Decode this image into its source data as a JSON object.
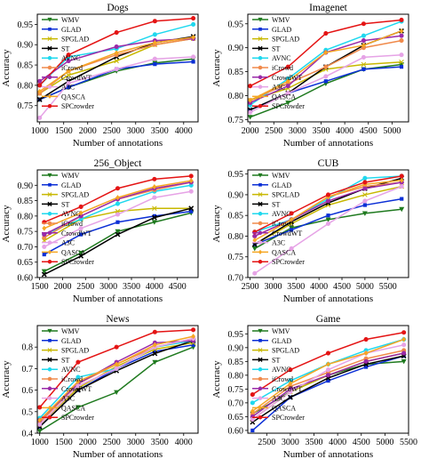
{
  "chart_data": [
    {
      "type": "line",
      "title": "Dogs",
      "xlabel": "Number of annotations",
      "ylabel": "Accuracy",
      "xlim": [
        950,
        4300
      ],
      "ylim": [
        0.71,
        0.975
      ],
      "xticks": [
        1000,
        1500,
        2000,
        2500,
        3000,
        3500,
        4000
      ],
      "yticks": [
        0.75,
        0.8,
        0.85,
        0.9,
        0.95
      ],
      "legend_position": "top-left",
      "x": [
        1000,
        1600,
        2600,
        3400,
        4200
      ],
      "series": [
        {
          "name": "WMV",
          "values": [
            0.765,
            0.795,
            0.835,
            0.855,
            0.865
          ]
        },
        {
          "name": "GLAD",
          "values": [
            0.765,
            0.795,
            0.84,
            0.852,
            0.858
          ]
        },
        {
          "name": "SPGLAD",
          "values": [
            0.78,
            0.825,
            0.86,
            0.9,
            0.915
          ]
        },
        {
          "name": "ST",
          "values": [
            0.765,
            0.81,
            0.87,
            0.905,
            0.92
          ]
        },
        {
          "name": "AVNC",
          "values": [
            0.8,
            0.87,
            0.89,
            0.925,
            0.95
          ]
        },
        {
          "name": "iCrowd",
          "values": [
            0.78,
            0.835,
            0.875,
            0.9,
            0.915
          ]
        },
        {
          "name": "CrowdWT",
          "values": [
            0.81,
            0.86,
            0.895,
            0.91,
            0.915
          ]
        },
        {
          "name": "A3C",
          "values": [
            0.72,
            0.805,
            0.84,
            0.865,
            0.87
          ]
        },
        {
          "name": "QASCA",
          "values": [
            0.785,
            0.835,
            0.88,
            0.905,
            0.918
          ]
        },
        {
          "name": "SPCrowder",
          "values": [
            0.8,
            0.875,
            0.93,
            0.958,
            0.965
          ]
        }
      ]
    },
    {
      "type": "line",
      "title": "Imagenet",
      "xlabel": "Number of annotations",
      "ylabel": "Accuracy",
      "xlim": [
        1950,
        5350
      ],
      "ylim": [
        0.745,
        0.97
      ],
      "xticks": [
        2000,
        2500,
        3000,
        3500,
        4000,
        4500,
        5000
      ],
      "yticks": [
        0.75,
        0.8,
        0.85,
        0.9,
        0.95
      ],
      "legend_position": "top-left",
      "x": [
        2000,
        2800,
        3600,
        4400,
        5200
      ],
      "series": [
        {
          "name": "WMV",
          "values": [
            0.755,
            0.785,
            0.825,
            0.855,
            0.865
          ]
        },
        {
          "name": "GLAD",
          "values": [
            0.77,
            0.805,
            0.83,
            0.855,
            0.86
          ]
        },
        {
          "name": "SPGLAD",
          "values": [
            0.79,
            0.815,
            0.855,
            0.865,
            0.87
          ]
        },
        {
          "name": "ST",
          "values": [
            0.77,
            0.805,
            0.86,
            0.905,
            0.935
          ]
        },
        {
          "name": "AVNC",
          "values": [
            0.78,
            0.835,
            0.895,
            0.925,
            0.955
          ]
        },
        {
          "name": "iCrowd",
          "values": [
            0.79,
            0.825,
            0.86,
            0.9,
            0.915
          ]
        },
        {
          "name": "CrowdWT",
          "values": [
            0.785,
            0.82,
            0.89,
            0.915,
            0.925
          ]
        },
        {
          "name": "A3C",
          "values": [
            0.765,
            0.805,
            0.84,
            0.88,
            0.885
          ]
        },
        {
          "name": "QASCA",
          "values": [
            0.79,
            0.83,
            0.89,
            0.905,
            0.935
          ]
        },
        {
          "name": "SPCrowder",
          "values": [
            0.82,
            0.86,
            0.93,
            0.95,
            0.958
          ]
        }
      ]
    },
    {
      "type": "line",
      "title": "256_Object",
      "xlabel": "Number of annotations",
      "ylabel": "Accuracy",
      "xlim": [
        1450,
        4950
      ],
      "ylim": [
        0.6,
        0.95
      ],
      "xticks": [
        1500,
        2000,
        2500,
        3000,
        3500,
        4000,
        4500
      ],
      "yticks": [
        0.6,
        0.65,
        0.7,
        0.75,
        0.8,
        0.85,
        0.9
      ],
      "legend_position": "top-left",
      "x": [
        1600,
        2400,
        3200,
        4000,
        4800
      ],
      "series": [
        {
          "name": "WMV",
          "values": [
            0.62,
            0.68,
            0.75,
            0.78,
            0.81
          ]
        },
        {
          "name": "GLAD",
          "values": [
            0.675,
            0.74,
            0.78,
            0.8,
            0.815
          ]
        },
        {
          "name": "SPGLAD",
          "values": [
            0.72,
            0.79,
            0.815,
            0.825,
            0.825
          ]
        },
        {
          "name": "ST",
          "values": [
            0.61,
            0.67,
            0.74,
            0.795,
            0.825
          ]
        },
        {
          "name": "AVNC",
          "values": [
            0.74,
            0.79,
            0.84,
            0.88,
            0.9
          ]
        },
        {
          "name": "iCrowd",
          "values": [
            0.73,
            0.8,
            0.855,
            0.885,
            0.91
          ]
        },
        {
          "name": "CrowdWT",
          "values": [
            0.74,
            0.8,
            0.855,
            0.89,
            0.91
          ]
        },
        {
          "name": "A3C",
          "values": [
            0.7,
            0.76,
            0.805,
            0.86,
            0.88
          ]
        },
        {
          "name": "QASCA",
          "values": [
            0.76,
            0.81,
            0.86,
            0.895,
            0.915
          ]
        },
        {
          "name": "SPCrowder",
          "values": [
            0.78,
            0.83,
            0.89,
            0.92,
            0.93
          ]
        }
      ]
    },
    {
      "type": "line",
      "title": "CUB",
      "xlabel": "Number of annotations",
      "ylabel": "Accuracy",
      "xlim": [
        2450,
        5950
      ],
      "ylim": [
        0.7,
        0.96
      ],
      "xticks": [
        2500,
        3000,
        3500,
        4000,
        4500,
        5000,
        5500
      ],
      "yticks": [
        0.7,
        0.75,
        0.8,
        0.85,
        0.9,
        0.95
      ],
      "legend_position": "top-left",
      "x": [
        2600,
        3400,
        4200,
        5000,
        5800
      ],
      "series": [
        {
          "name": "WMV",
          "values": [
            0.77,
            0.82,
            0.84,
            0.855,
            0.865
          ]
        },
        {
          "name": "GLAD",
          "values": [
            0.78,
            0.815,
            0.85,
            0.875,
            0.89
          ]
        },
        {
          "name": "SPGLAD",
          "values": [
            0.78,
            0.83,
            0.875,
            0.9,
            0.92
          ]
        },
        {
          "name": "ST",
          "values": [
            0.78,
            0.835,
            0.88,
            0.915,
            0.94
          ]
        },
        {
          "name": "AVNC",
          "values": [
            0.81,
            0.84,
            0.89,
            0.94,
            0.945
          ]
        },
        {
          "name": "iCrowd",
          "values": [
            0.8,
            0.84,
            0.895,
            0.92,
            0.93
          ]
        },
        {
          "name": "CrowdWT",
          "values": [
            0.8,
            0.84,
            0.885,
            0.915,
            0.93
          ]
        },
        {
          "name": "A3C",
          "values": [
            0.71,
            0.77,
            0.83,
            0.885,
            0.92
          ]
        },
        {
          "name": "QASCA",
          "values": [
            0.79,
            0.84,
            0.895,
            0.925,
            0.935
          ]
        },
        {
          "name": "SPCrowder",
          "values": [
            0.81,
            0.855,
            0.9,
            0.93,
            0.945
          ]
        }
      ]
    },
    {
      "type": "line",
      "title": "News",
      "xlabel": "Number of annotations",
      "ylabel": "Accuracy",
      "xlim": [
        950,
        4300
      ],
      "ylim": [
        0.4,
        0.9
      ],
      "xticks": [
        1000,
        1500,
        2000,
        2500,
        3000,
        3500,
        4000
      ],
      "yticks": [
        0.4,
        0.5,
        0.6,
        0.7,
        0.8
      ],
      "legend_position": "top-left",
      "x": [
        1000,
        1800,
        2600,
        3400,
        4200
      ],
      "series": [
        {
          "name": "WMV",
          "values": [
            0.41,
            0.52,
            0.59,
            0.73,
            0.8
          ]
        },
        {
          "name": "GLAD",
          "values": [
            0.43,
            0.6,
            0.7,
            0.78,
            0.81
          ]
        },
        {
          "name": "SPGLAD",
          "values": [
            0.44,
            0.61,
            0.71,
            0.79,
            0.82
          ]
        },
        {
          "name": "ST",
          "values": [
            0.43,
            0.6,
            0.69,
            0.77,
            0.83
          ]
        },
        {
          "name": "AVNC",
          "values": [
            0.47,
            0.66,
            0.7,
            0.8,
            0.83
          ]
        },
        {
          "name": "iCrowd",
          "values": [
            0.45,
            0.63,
            0.72,
            0.8,
            0.84
          ]
        },
        {
          "name": "CrowdWT",
          "values": [
            0.46,
            0.63,
            0.73,
            0.82,
            0.83
          ]
        },
        {
          "name": "A3C",
          "values": [
            0.44,
            0.62,
            0.7,
            0.8,
            0.84
          ]
        },
        {
          "name": "QASCA",
          "values": [
            0.46,
            0.64,
            0.72,
            0.81,
            0.85
          ]
        },
        {
          "name": "SPCrowder",
          "values": [
            0.52,
            0.73,
            0.8,
            0.87,
            0.88
          ]
        }
      ]
    },
    {
      "type": "line",
      "title": "Game",
      "xlabel": "Number of annotations",
      "ylabel": "Accuracy",
      "xlim": [
        2100,
        5500
      ],
      "ylim": [
        0.59,
        0.98
      ],
      "xticks": [
        2500,
        3000,
        3500,
        4000,
        4500,
        5000,
        5500
      ],
      "yticks": [
        0.6,
        0.65,
        0.7,
        0.75,
        0.8,
        0.85,
        0.9,
        0.95
      ],
      "legend_position": "top-left",
      "x": [
        2200,
        3000,
        3800,
        4600,
        5400
      ],
      "series": [
        {
          "name": "WMV",
          "values": [
            0.66,
            0.74,
            0.8,
            0.84,
            0.85
          ]
        },
        {
          "name": "GLAD",
          "values": [
            0.6,
            0.72,
            0.78,
            0.83,
            0.87
          ]
        },
        {
          "name": "SPGLAD",
          "values": [
            0.64,
            0.74,
            0.8,
            0.85,
            0.88
          ]
        },
        {
          "name": "ST",
          "values": [
            0.63,
            0.72,
            0.79,
            0.84,
            0.87
          ]
        },
        {
          "name": "AVNC",
          "values": [
            0.7,
            0.78,
            0.84,
            0.89,
            0.93
          ]
        },
        {
          "name": "iCrowd",
          "values": [
            0.66,
            0.76,
            0.81,
            0.86,
            0.89
          ]
        },
        {
          "name": "CrowdWT",
          "values": [
            0.65,
            0.75,
            0.8,
            0.85,
            0.88
          ]
        },
        {
          "name": "A3C",
          "values": [
            0.64,
            0.74,
            0.82,
            0.88,
            0.91
          ]
        },
        {
          "name": "QASCA",
          "values": [
            0.67,
            0.77,
            0.84,
            0.88,
            0.93
          ]
        },
        {
          "name": "SPCrowder",
          "values": [
            0.73,
            0.82,
            0.88,
            0.93,
            0.955
          ]
        }
      ]
    }
  ],
  "series_styles": [
    {
      "name": "WMV",
      "color": "#1f7a1f",
      "marker": "triangle-down"
    },
    {
      "name": "GLAD",
      "color": "#0b2fd6",
      "marker": "square"
    },
    {
      "name": "SPGLAD",
      "color": "#c8b800",
      "marker": "x-thin"
    },
    {
      "name": "ST",
      "color": "#000000",
      "marker": "x"
    },
    {
      "name": "AVNC",
      "color": "#1ed8ee",
      "marker": "circle"
    },
    {
      "name": "iCrowd",
      "color": "#f08a4b",
      "marker": "circle"
    },
    {
      "name": "CrowdWT",
      "color": "#9a2aa8",
      "marker": "circle"
    },
    {
      "name": "A3C",
      "color": "#e6a3e6",
      "marker": "circle"
    },
    {
      "name": "QASCA",
      "color": "#f5a623",
      "marker": "diamond"
    },
    {
      "name": "SPCrowder",
      "color": "#e41414",
      "marker": "circle"
    }
  ]
}
